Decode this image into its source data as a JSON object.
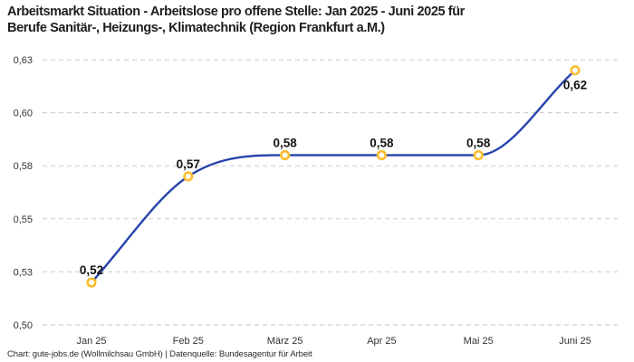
{
  "header": {
    "line1": "Arbeitsmarkt Situation - Arbeitslose pro offene Stelle: Jan 2025 - Juni 2025 für",
    "line2": "Berufe Sanitär-, Heizungs-, Klimatechnik (Region Frankfurt a.M.)"
  },
  "footer": "Chart: gute-jobs.de (Wollmilchsau GmbH) | Datenquelle: Bundesagentur für Arbeit",
  "chart_data": {
    "type": "line",
    "title": "Arbeitsmarkt Situation - Arbeitslose pro offene Stelle: Jan 2025 - Juni 2025 für Berufe Sanitär-, Heizungs-, Klimatechnik (Region Frankfurt a.M.)",
    "categories": [
      "Jan 25",
      "Feb 25",
      "März 25",
      "Apr 25",
      "Mai 25",
      "Juni 25"
    ],
    "values": [
      0.52,
      0.57,
      0.58,
      0.58,
      0.58,
      0.62
    ],
    "point_labels": [
      "0,52",
      "0,57",
      "0,58",
      "0,58",
      "0,58",
      "0,62"
    ],
    "point_label_placement": [
      "above",
      "above",
      "above",
      "above",
      "above",
      "below"
    ],
    "xlabel": "",
    "ylabel": "",
    "ylim": [
      0.5,
      0.625
    ],
    "y_ticks": [
      {
        "value": 0.5,
        "label": "0,50"
      },
      {
        "value": 0.525,
        "label": "0,53"
      },
      {
        "value": 0.55,
        "label": "0,55"
      },
      {
        "value": 0.575,
        "label": "0,58"
      },
      {
        "value": 0.6,
        "label": "0,60"
      },
      {
        "value": 0.625,
        "label": "0,63"
      }
    ],
    "grid": "horizontal-dashed",
    "legend_position": "none",
    "curve": "monotone",
    "colors": {
      "line": "#2743ad",
      "marker_ring": "#fbbd2f",
      "marker_fill": "#ffffff",
      "grid": "#c9c9c9",
      "title_text": "#1e1e1e",
      "axis_text": "#333333",
      "point_label_text": "#141414",
      "footer_text": "#2b2b2b",
      "background": "#ffffff"
    }
  }
}
